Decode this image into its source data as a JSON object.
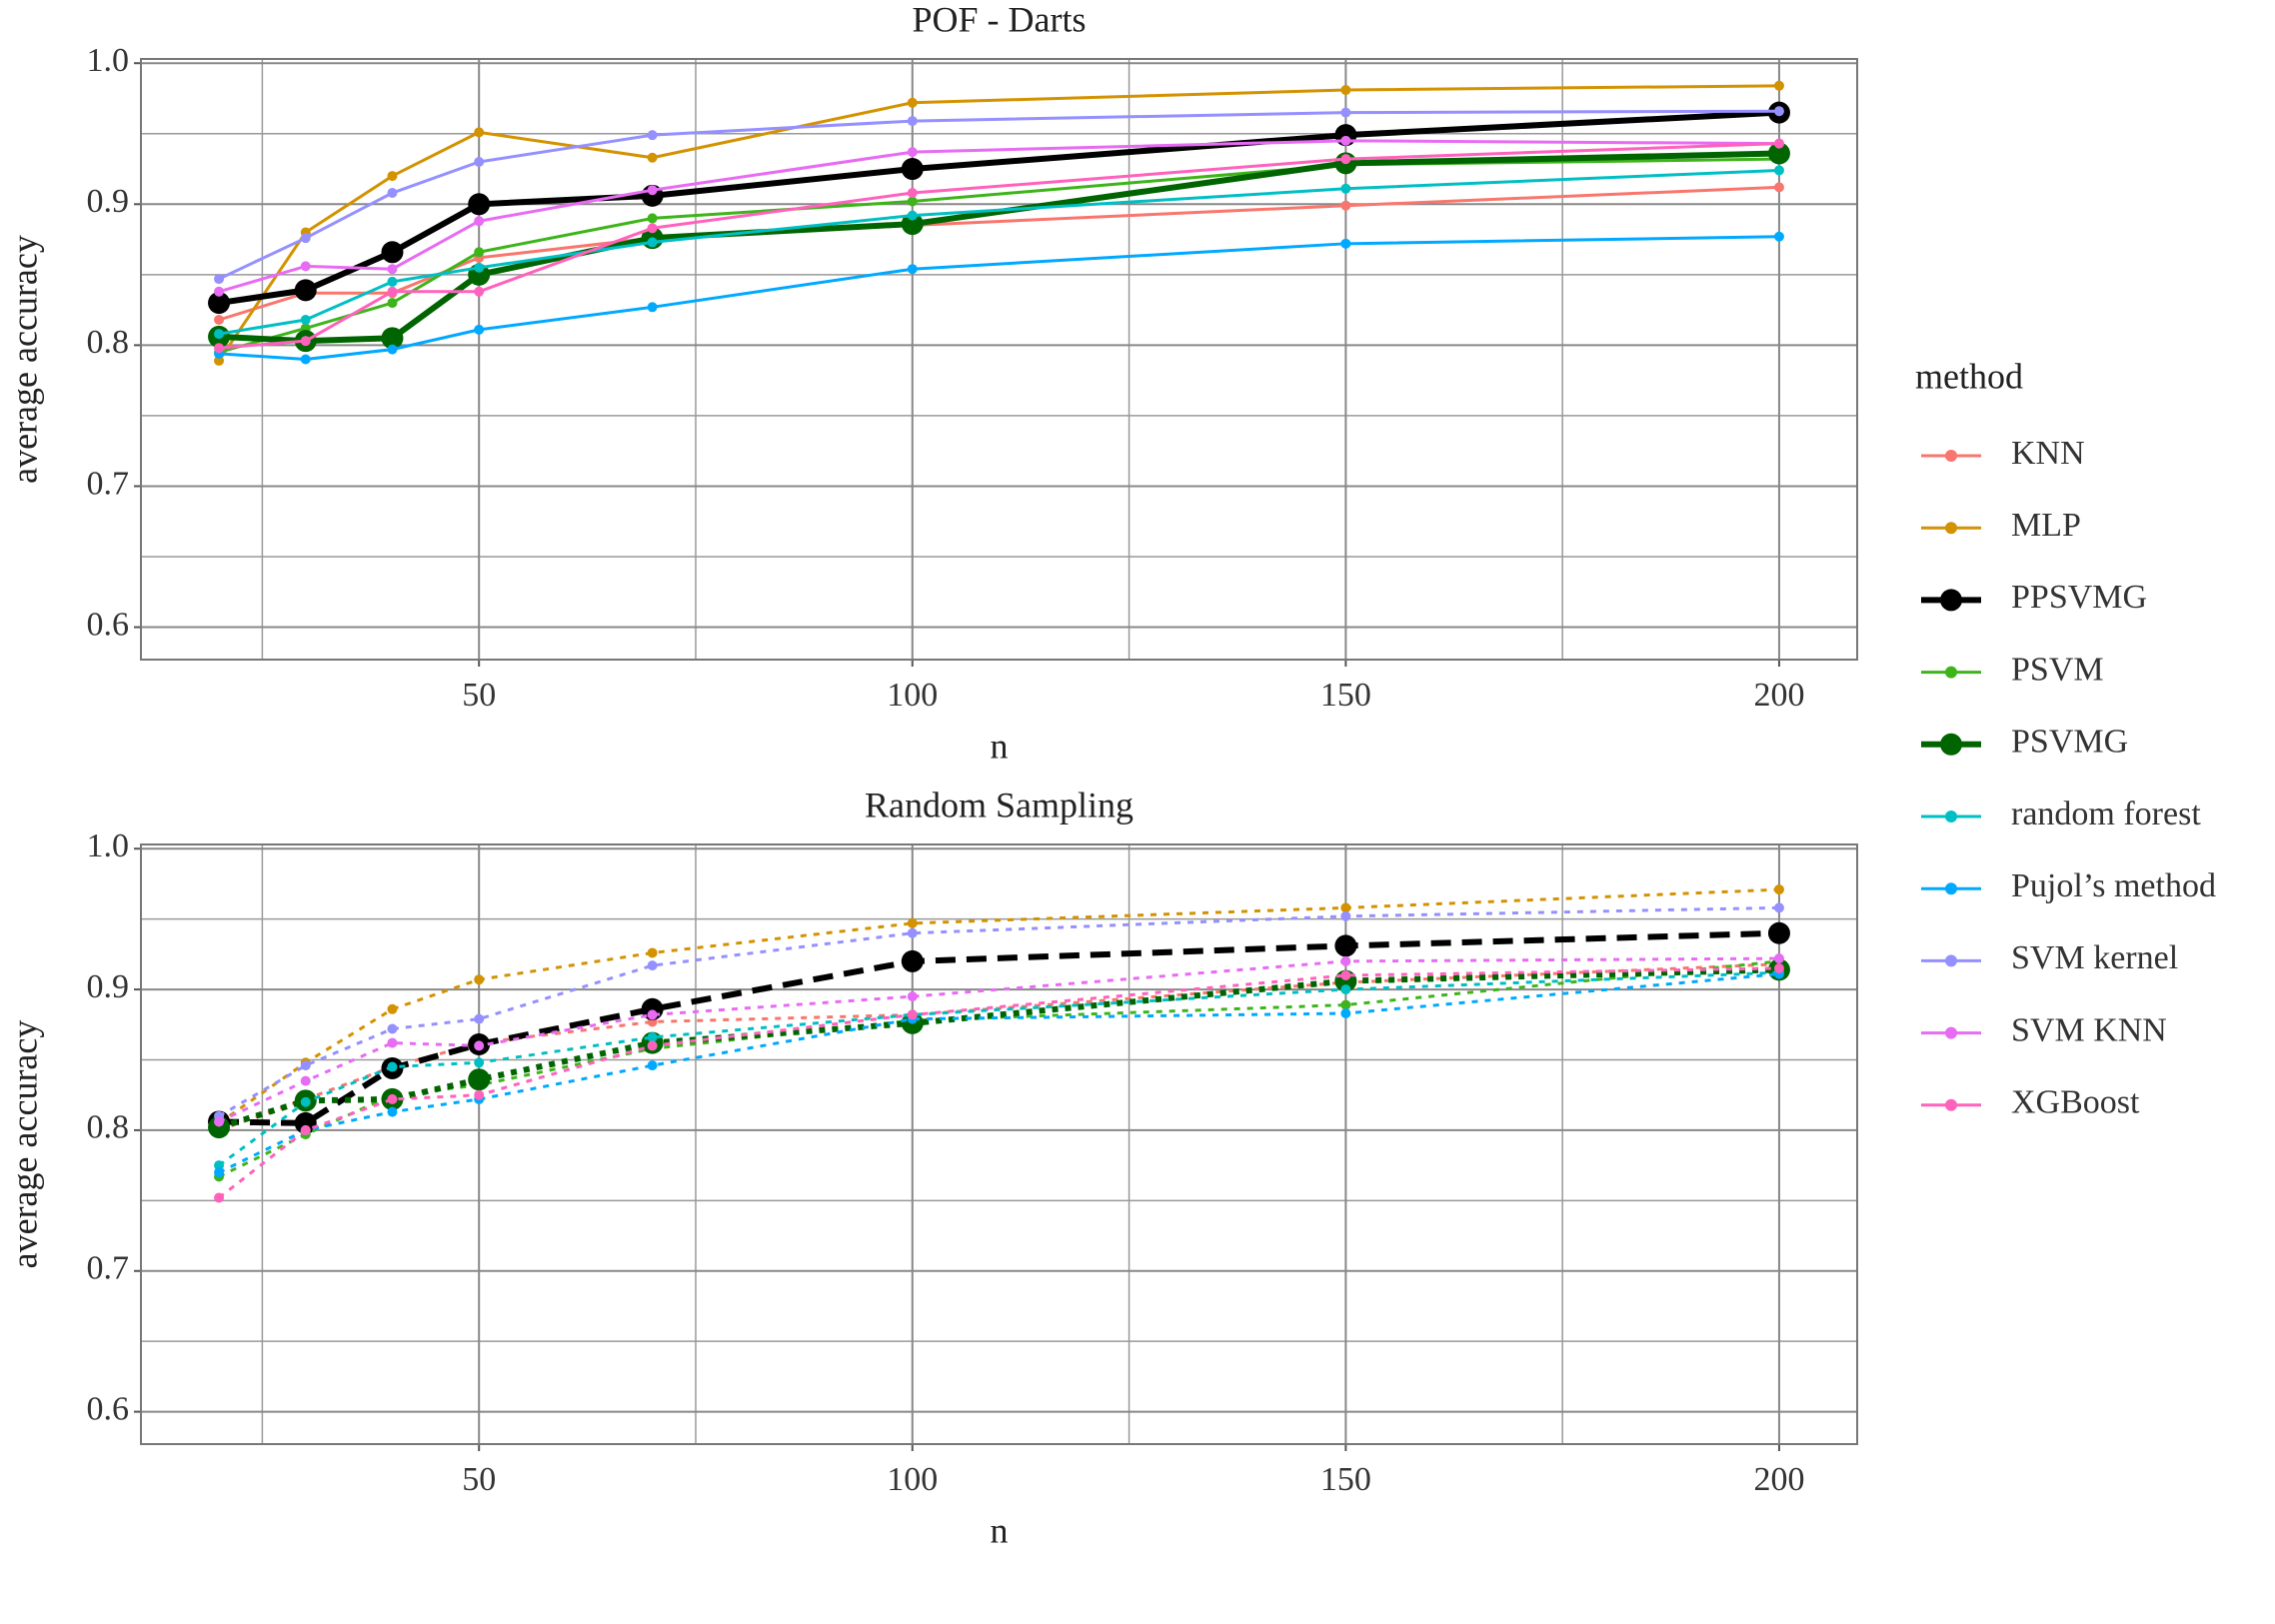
{
  "chart_data": [
    {
      "type": "line",
      "title": "POF - Darts",
      "xlabel": "n",
      "ylabel": "average accuracy",
      "legend_title": "method",
      "legend": "right",
      "grid": true,
      "x": [
        20,
        30,
        40,
        50,
        70,
        100,
        150,
        200
      ],
      "xlim": [
        11,
        209
      ],
      "xticks": [
        50,
        100,
        150,
        200
      ],
      "xminor": [
        25,
        75,
        125,
        175
      ],
      "ylim": [
        0.577,
        1.003
      ],
      "yticks": [
        0.6,
        0.7,
        0.8,
        0.9,
        {
          "value": 1,
          "label": "1.0"
        }
      ],
      "yminor": [
        0.65,
        0.75,
        0.85,
        0.95
      ],
      "series": [
        {
          "name": "KNN",
          "color": "#F8766D",
          "line_style": "solid",
          "values": [
            0.818,
            0.837,
            0.837,
            0.862,
            0.876,
            0.885,
            0.899,
            0.912
          ]
        },
        {
          "name": "MLP",
          "color": "#D39200",
          "line_style": "solid",
          "values": [
            0.789,
            0.88,
            0.92,
            0.951,
            0.933,
            0.972,
            0.981,
            0.984
          ]
        },
        {
          "name": "PPSVMG",
          "color": "#000000",
          "line_style": "solid",
          "highlight": true,
          "values": [
            0.83,
            0.839,
            0.866,
            0.9,
            0.906,
            0.925,
            0.949,
            0.965
          ]
        },
        {
          "name": "PSVM",
          "color": "#3DB41A",
          "line_style": "solid",
          "values": [
            0.795,
            0.812,
            0.83,
            0.866,
            0.89,
            0.902,
            0.928,
            0.932
          ]
        },
        {
          "name": "PSVMG",
          "color": "#006400",
          "line_style": "solid",
          "highlight": true,
          "values": [
            0.806,
            0.803,
            0.805,
            0.85,
            0.876,
            0.886,
            0.929,
            0.936
          ]
        },
        {
          "name": "random forest",
          "color": "#00BFC4",
          "line_style": "solid",
          "values": [
            0.808,
            0.818,
            0.845,
            0.855,
            0.873,
            0.892,
            0.911,
            0.924
          ]
        },
        {
          "name": "Pujol’s method",
          "color": "#00A9FF",
          "line_style": "solid",
          "values": [
            0.794,
            0.79,
            0.797,
            0.811,
            0.827,
            0.854,
            0.872,
            0.877
          ]
        },
        {
          "name": "SVM kernel",
          "color": "#9590FF",
          "line_style": "solid",
          "values": [
            0.847,
            0.876,
            0.908,
            0.93,
            0.949,
            0.959,
            0.965,
            0.966
          ]
        },
        {
          "name": "SVM KNN",
          "color": "#E76BF3",
          "line_style": "solid",
          "values": [
            0.838,
            0.856,
            0.854,
            0.888,
            0.91,
            0.937,
            0.945,
            0.943
          ]
        },
        {
          "name": "XGBoost",
          "color": "#FF62BC",
          "line_style": "solid",
          "values": [
            0.798,
            0.803,
            0.838,
            0.838,
            0.883,
            0.908,
            0.932,
            0.943
          ]
        }
      ]
    },
    {
      "type": "line",
      "title": "Random Sampling",
      "xlabel": "n",
      "ylabel": "average accuracy",
      "grid": true,
      "x": [
        20,
        30,
        40,
        50,
        70,
        100,
        150,
        200
      ],
      "xlim": [
        11,
        209
      ],
      "xticks": [
        50,
        100,
        150,
        200
      ],
      "xminor": [
        25,
        75,
        125,
        175
      ],
      "ylim": [
        0.577,
        1.003
      ],
      "yticks": [
        0.6,
        0.7,
        0.8,
        0.9,
        {
          "value": 1,
          "label": "1.0"
        }
      ],
      "yminor": [
        0.65,
        0.75,
        0.85,
        0.95
      ],
      "series": [
        {
          "name": "KNN",
          "color": "#F8766D",
          "line_style": "dotted",
          "values": [
            0.8,
            0.822,
            0.845,
            0.862,
            0.877,
            0.882,
            0.905,
            0.918
          ]
        },
        {
          "name": "MLP",
          "color": "#D39200",
          "line_style": "dotted",
          "values": [
            0.805,
            0.848,
            0.886,
            0.907,
            0.926,
            0.947,
            0.958,
            0.971
          ]
        },
        {
          "name": "PPSVMG",
          "color": "#000000",
          "line_style": "dashed",
          "highlight": true,
          "values": [
            0.806,
            0.805,
            0.844,
            0.861,
            0.886,
            0.92,
            0.931,
            0.94
          ]
        },
        {
          "name": "PSVM",
          "color": "#3DB41A",
          "line_style": "dotted",
          "values": [
            0.767,
            0.797,
            0.825,
            0.832,
            0.858,
            0.878,
            0.889,
            0.92
          ]
        },
        {
          "name": "PSVMG",
          "color": "#006400",
          "line_style": "dotted",
          "highlight": true,
          "values": [
            0.802,
            0.821,
            0.822,
            0.836,
            0.862,
            0.876,
            0.906,
            0.914
          ]
        },
        {
          "name": "random forest",
          "color": "#00BFC4",
          "line_style": "dotted",
          "values": [
            0.775,
            0.82,
            0.845,
            0.848,
            0.866,
            0.882,
            0.9,
            0.912
          ]
        },
        {
          "name": "Pujol’s method",
          "color": "#00A9FF",
          "line_style": "dotted",
          "values": [
            0.77,
            0.8,
            0.813,
            0.822,
            0.846,
            0.879,
            0.883,
            0.911
          ]
        },
        {
          "name": "SVM kernel",
          "color": "#9590FF",
          "line_style": "dotted",
          "values": [
            0.81,
            0.846,
            0.872,
            0.879,
            0.917,
            0.94,
            0.952,
            0.958
          ]
        },
        {
          "name": "SVM KNN",
          "color": "#E76BF3",
          "line_style": "dotted",
          "values": [
            0.806,
            0.835,
            0.862,
            0.86,
            0.882,
            0.895,
            0.92,
            0.922
          ]
        },
        {
          "name": "XGBoost",
          "color": "#FF62BC",
          "line_style": "dotted",
          "values": [
            0.752,
            0.8,
            0.822,
            0.825,
            0.86,
            0.882,
            0.91,
            0.915
          ]
        }
      ]
    }
  ]
}
